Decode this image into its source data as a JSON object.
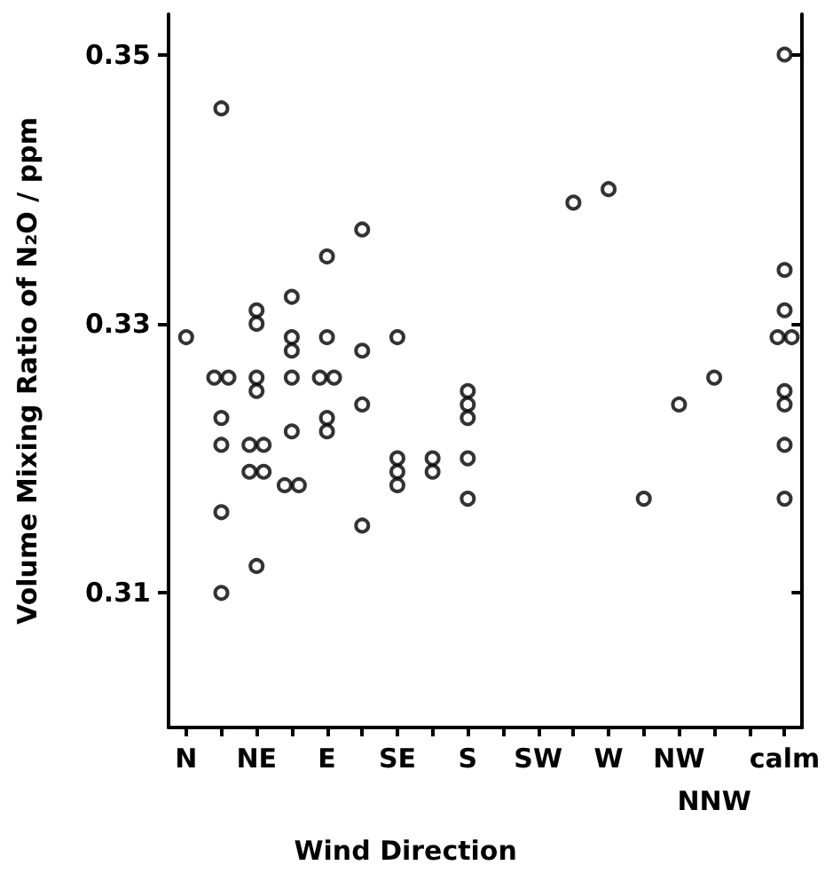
{
  "chart_data": {
    "type": "scatter",
    "xlabel": "Wind Direction",
    "ylabel": "Volume Mixing Ratio of N₂O / ppm",
    "categories": [
      "N",
      null,
      "NE",
      null,
      "E",
      null,
      "SE",
      null,
      "S",
      null,
      "SW",
      null,
      "W",
      null,
      "NW",
      "NNW",
      null,
      "calm"
    ],
    "series": [
      {
        "color": "#000000",
        "values": [
          0.329,
          0.346,
          0.331,
          0.332,
          0.335,
          0.337,
          0.329,
          0.32,
          0.325,
          null,
          null,
          0.339,
          0.34,
          0.317,
          0.324,
          0.326,
          null,
          0.35
        ]
      },
      {
        "color": "#000000",
        "values": [
          null,
          0.326,
          0.33,
          0.329,
          0.329,
          0.328,
          0.32,
          0.319,
          0.324,
          null,
          null,
          null,
          null,
          null,
          null,
          null,
          null,
          0.334
        ]
      },
      {
        "color": "#000000",
        "values": [
          null,
          0.326,
          0.326,
          0.328,
          0.326,
          0.324,
          0.319,
          null,
          0.323,
          null,
          null,
          null,
          null,
          null,
          null,
          null,
          null,
          0.331
        ]
      },
      {
        "color": "#000000",
        "values": [
          null,
          0.323,
          0.325,
          0.326,
          0.326,
          0.315,
          0.318,
          null,
          0.32,
          null,
          null,
          null,
          null,
          null,
          null,
          null,
          null,
          0.329
        ]
      },
      {
        "color": "#000000",
        "values": [
          null,
          0.321,
          0.321,
          0.322,
          0.323,
          null,
          null,
          null,
          0.317,
          null,
          null,
          null,
          null,
          null,
          null,
          null,
          null,
          0.329
        ]
      },
      {
        "color": "#000000",
        "values": [
          null,
          0.316,
          0.321,
          0.318,
          0.322,
          null,
          null,
          null,
          null,
          null,
          null,
          null,
          null,
          null,
          null,
          null,
          null,
          0.325
        ]
      },
      {
        "color": "#000000",
        "values": [
          null,
          0.31,
          0.319,
          0.318,
          null,
          null,
          null,
          null,
          null,
          null,
          null,
          null,
          null,
          null,
          null,
          null,
          null,
          0.324
        ]
      },
      {
        "color": "#000000",
        "values": [
          null,
          null,
          0.319,
          null,
          null,
          null,
          null,
          null,
          null,
          null,
          null,
          null,
          null,
          null,
          null,
          null,
          null,
          0.321
        ]
      },
      {
        "color": "#000000",
        "values": [
          null,
          null,
          0.312,
          null,
          null,
          null,
          null,
          null,
          null,
          null,
          null,
          null,
          null,
          null,
          null,
          null,
          null,
          0.317
        ]
      }
    ],
    "ylim": [
      0.3,
      0.353
    ],
    "yticks": [
      0.31,
      0.33,
      0.35
    ],
    "marker": "circle",
    "grid": false
  }
}
